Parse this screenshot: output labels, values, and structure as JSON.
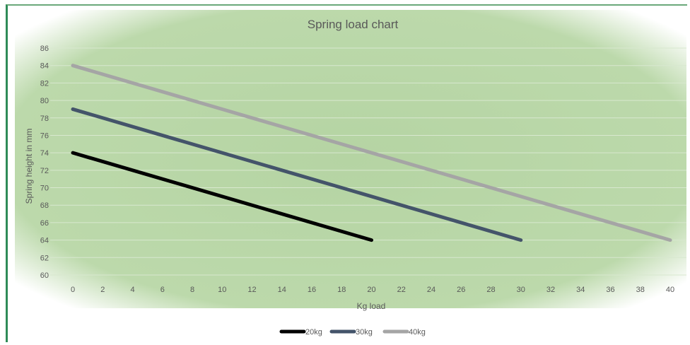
{
  "chart_data": {
    "type": "line",
    "title": "Spring load chart",
    "xlabel": "Kg load",
    "ylabel": "Spring height in mm",
    "xlim": [
      0,
      40
    ],
    "ylim": [
      60,
      86
    ],
    "x_ticks": [
      0,
      2,
      4,
      6,
      8,
      10,
      12,
      14,
      16,
      18,
      20,
      22,
      24,
      26,
      28,
      30,
      32,
      34,
      36,
      38,
      40
    ],
    "y_ticks": [
      60,
      62,
      64,
      66,
      68,
      70,
      72,
      74,
      76,
      78,
      80,
      82,
      84,
      86
    ],
    "grid": "horizontal",
    "legend": "bottom",
    "plot_background": "#b9d7a8",
    "series": [
      {
        "name": "20kg",
        "color": "#000000",
        "x": [
          0,
          20
        ],
        "y": [
          74,
          64
        ]
      },
      {
        "name": "30kg",
        "color": "#44546a",
        "x": [
          0,
          30
        ],
        "y": [
          79,
          64
        ]
      },
      {
        "name": "40kg",
        "color": "#a5a5a5",
        "x": [
          0,
          40
        ],
        "y": [
          84,
          64
        ]
      }
    ]
  }
}
